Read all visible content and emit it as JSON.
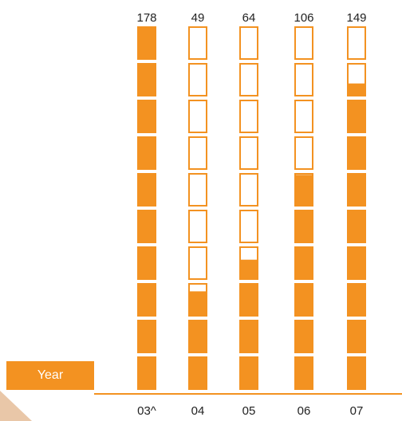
{
  "chart_data": {
    "type": "bar",
    "style": "pictogram-stacked-boxes",
    "categories": [
      "03^",
      "04",
      "05",
      "06",
      "07"
    ],
    "values": [
      178,
      49,
      64,
      106,
      149
    ],
    "ylim": [
      0,
      178
    ],
    "box_count": 10,
    "xlabel": "Year",
    "title": "",
    "ylabel": "",
    "grid": false
  },
  "labels": {
    "year": "Year"
  },
  "colors": {
    "fill": "#f39221",
    "empty": "#ffffff",
    "axis": "#f39221",
    "text": "#222222",
    "wedge": "#e9c7a8"
  }
}
